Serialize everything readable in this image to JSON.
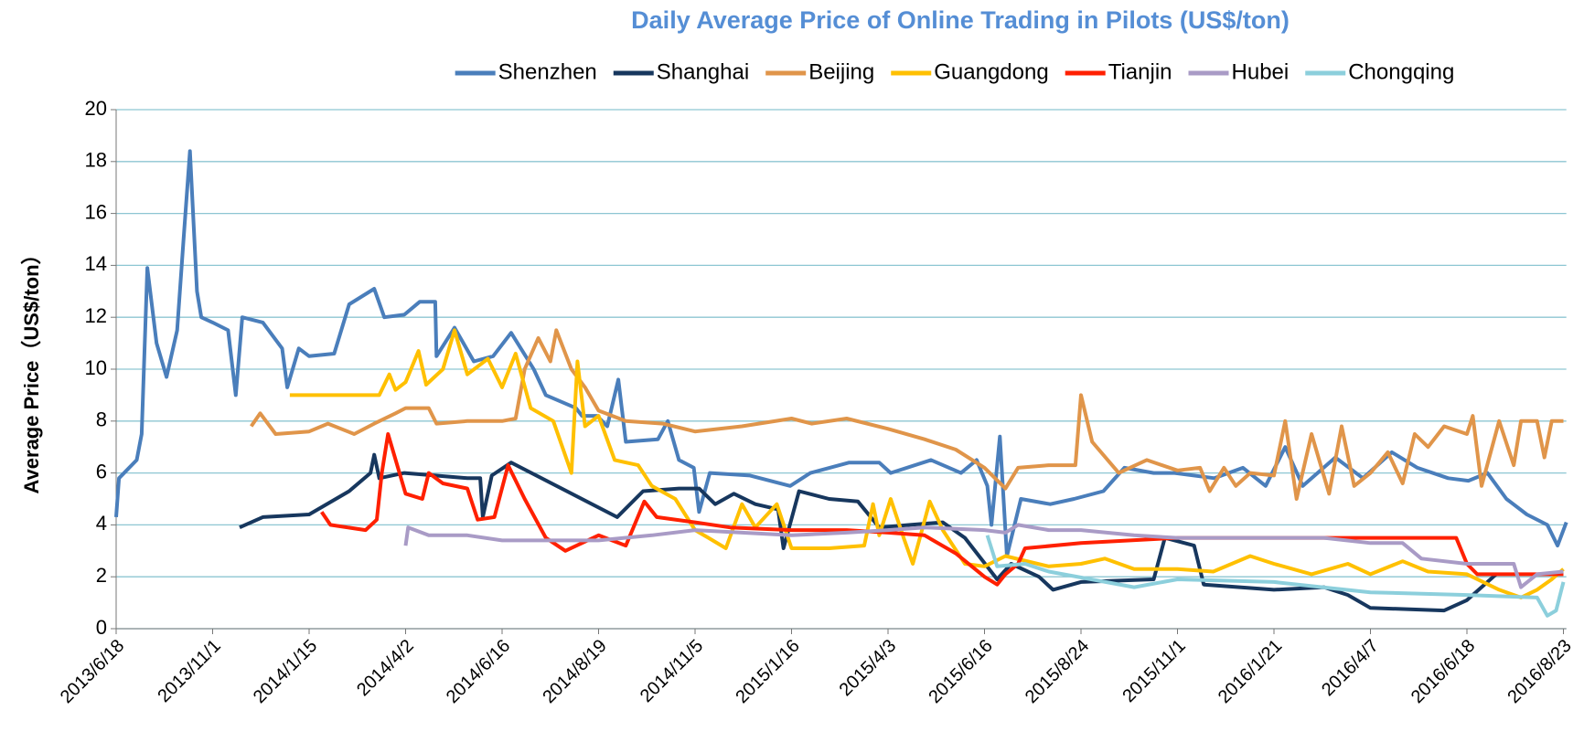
{
  "chart_data": {
    "type": "line",
    "title": "Daily Average Price of Online Trading in Pilots (US$/ton)",
    "y_label": "Average Price（US$/ton）",
    "xlim": [
      "2013/6/18",
      "2016/8/25"
    ],
    "xticks": [
      "2013/6/18",
      "2013/11/1",
      "2014/1/15",
      "2014/4/2",
      "2014/6/16",
      "2014/8/19",
      "2014/11/5",
      "2015/1/16",
      "2015/4/3",
      "2015/6/16",
      "2015/8/24",
      "2015/11/1",
      "2016/1/21",
      "2016/4/7",
      "2016/6/18",
      "2016/8/23"
    ],
    "ylim": [
      0,
      20
    ],
    "yticks": [
      0,
      2,
      4,
      6,
      8,
      10,
      12,
      14,
      16,
      18,
      20
    ],
    "grid": true,
    "legend": "top",
    "series": [
      {
        "name": "Shenzhen",
        "color": "#4a7ebb",
        "x": [
          "2013/6/18",
          "2013/6/22",
          "2013/7/17",
          "2013/7/24",
          "2013/8/1",
          "2013/8/14",
          "2013/8/28",
          "2013/9/12",
          "2013/9/21",
          "2013/9/30",
          "2013/10/10",
          "2013/10/16",
          "2013/11/1",
          "2013/11/13",
          "2013/11/19",
          "2013/11/24",
          "2013/12/10",
          "2013/12/25",
          "2013/12/29",
          "2014/1/7",
          "2014/1/15",
          "2014/2/4",
          "2014/2/16",
          "2014/3/8",
          "2014/3/16",
          "2014/4/1",
          "2014/4/13",
          "2014/4/25",
          "2014/4/26",
          "2014/5/10",
          "2014/5/25",
          "2014/6/9",
          "2014/6/22",
          "2014/7/7",
          "2014/7/15",
          "2014/8/4",
          "2014/8/8",
          "2014/8/18",
          "2014/8/26",
          "2014/9/4",
          "2014/9/10",
          "2014/10/6",
          "2014/10/14",
          "2014/10/23",
          "2014/11/4",
          "2014/11/8",
          "2014/11/16",
          "2014/12/16",
          "2015/1/15",
          "2015/1/31",
          "2015/3/3",
          "2015/3/27",
          "2015/4/5",
          "2015/5/6",
          "2015/5/29",
          "2015/6/10",
          "2015/6/18",
          "2015/6/21",
          "2015/6/27",
          "2015/7/2",
          "2015/7/12",
          "2015/8/2",
          "2015/8/19",
          "2015/9/9",
          "2015/9/24",
          "2015/10/15",
          "2015/10/30",
          "2015/12/2",
          "2015/12/26",
          "2016/1/14",
          "2016/1/30",
          "2016/2/13",
          "2016/3/10",
          "2016/4/1",
          "2016/4/23",
          "2016/5/12",
          "2016/6/4",
          "2016/6/19",
          "2016/7/2",
          "2016/7/15",
          "2016/7/29",
          "2016/8/12",
          "2016/8/19",
          "2016/8/25"
        ],
        "values": [
          4.3,
          5.8,
          6.5,
          7.5,
          13.9,
          11,
          9.7,
          11.5,
          15,
          18.4,
          13,
          12,
          11.8,
          11.5,
          9,
          12,
          11.8,
          10.8,
          9.3,
          10.8,
          10.5,
          10.6,
          12.5,
          13.1,
          12,
          12.1,
          12.6,
          12.6,
          10.5,
          11.6,
          10.3,
          10.5,
          11.4,
          10,
          9,
          8.5,
          8.2,
          8.2,
          7.8,
          9.6,
          7.2,
          7.3,
          8,
          6.5,
          6.2,
          4.5,
          6,
          5.9,
          5.5,
          6,
          6.4,
          6.4,
          6,
          6.5,
          6,
          6.5,
          5.5,
          4,
          7.4,
          2.8,
          5,
          4.8,
          5,
          5.3,
          6.2,
          6,
          6,
          5.8,
          6.2,
          5.5,
          7,
          5.5,
          6.6,
          5.8,
          6.8,
          6.2,
          5.8,
          5.7,
          6,
          5,
          4.4,
          4,
          3.2,
          4.1
        ]
      },
      {
        "name": "Shanghai",
        "color": "#17375e",
        "x": [
          "2013/11/22",
          "2013/12/10",
          "2014/1/15",
          "2014/2/16",
          "2014/3/5",
          "2014/3/8",
          "2014/3/12",
          "2014/4/1",
          "2014/4/25",
          "2014/5/20",
          "2014/5/30",
          "2014/6/1",
          "2014/6/8",
          "2014/6/22",
          "2014/9/3",
          "2014/9/24",
          "2014/10/23",
          "2014/11/8",
          "2014/11/20",
          "2014/12/4",
          "2014/12/20",
          "2015/1/6",
          "2015/1/10",
          "2015/1/22",
          "2015/2/15",
          "2015/3/10",
          "2015/3/27",
          "2015/4/20",
          "2015/5/15",
          "2015/6/1",
          "2015/6/25",
          "2015/7/5",
          "2015/7/25",
          "2015/8/4",
          "2015/8/24",
          "2015/10/15",
          "2015/10/23",
          "2015/11/15",
          "2015/11/23",
          "2016/1/21",
          "2016/3/1",
          "2016/3/20",
          "2016/4/7",
          "2016/6/1",
          "2016/6/18",
          "2016/7/8"
        ],
        "values": [
          3.9,
          4.3,
          4.4,
          5.3,
          6,
          6.7,
          5.8,
          6,
          5.9,
          5.8,
          5.8,
          4.3,
          5.9,
          6.4,
          4.3,
          5.3,
          5.4,
          5.4,
          4.8,
          5.2,
          4.8,
          4.6,
          3.1,
          5.3,
          5,
          4.9,
          3.9,
          4,
          4.1,
          3.5,
          1.9,
          2.5,
          2,
          1.5,
          1.8,
          1.9,
          3.5,
          3.2,
          1.7,
          1.5,
          1.6,
          1.3,
          0.8,
          0.7,
          1.1,
          2.1
        ]
      },
      {
        "name": "Beijing",
        "color": "#e0954a",
        "x": [
          "2013/12/1",
          "2013/12/8",
          "2013/12/20",
          "2014/1/15",
          "2014/1/30",
          "2014/2/20",
          "2014/3/8",
          "2014/3/25",
          "2014/4/2",
          "2014/4/20",
          "2014/4/26",
          "2014/5/20",
          "2014/6/16",
          "2014/6/25",
          "2014/7/1",
          "2014/7/10",
          "2014/7/18",
          "2014/7/22",
          "2014/8/1",
          "2014/8/10",
          "2014/8/19",
          "2014/9/10",
          "2014/10/10",
          "2014/11/5",
          "2014/12/10",
          "2015/1/16",
          "2015/2/1",
          "2015/3/1",
          "2015/4/3",
          "2015/5/1",
          "2015/5/25",
          "2015/6/16",
          "2015/7/1",
          "2015/7/10",
          "2015/8/1",
          "2015/8/20",
          "2015/8/24",
          "2015/9/1",
          "2015/9/20",
          "2015/10/10",
          "2015/11/1",
          "2015/11/20",
          "2015/11/28",
          "2015/12/10",
          "2015/12/20",
          "2016/1/1",
          "2016/1/21",
          "2016/1/30",
          "2016/2/8",
          "2016/2/20",
          "2016/3/5",
          "2016/3/15",
          "2016/3/25",
          "2016/4/7",
          "2016/4/20",
          "2016/5/1",
          "2016/5/10",
          "2016/5/20",
          "2016/6/1",
          "2016/6/18",
          "2016/6/22",
          "2016/6/28",
          "2016/7/10",
          "2016/7/20",
          "2016/7/25",
          "2016/8/5",
          "2016/8/10",
          "2016/8/15",
          "2016/8/23"
        ],
        "values": [
          7.8,
          8.3,
          7.5,
          7.6,
          7.9,
          7.5,
          7.9,
          8.3,
          8.5,
          8.5,
          7.9,
          8,
          8,
          8.1,
          10,
          11.2,
          10.3,
          11.5,
          10,
          9.3,
          8.4,
          8,
          7.9,
          7.6,
          7.8,
          8.1,
          7.9,
          8.1,
          7.7,
          7.3,
          6.9,
          6.2,
          5.4,
          6.2,
          6.3,
          6.3,
          9,
          7.2,
          6,
          6.5,
          6.1,
          6.2,
          5.3,
          6.2,
          5.5,
          6,
          5.9,
          8,
          5,
          7.5,
          5.2,
          7.8,
          5.5,
          6,
          6.8,
          5.6,
          7.5,
          7,
          7.8,
          7.5,
          8.2,
          5.5,
          8,
          6.3,
          8,
          8,
          6.6,
          8,
          8
        ]
      },
      {
        "name": "Guangdong",
        "color": "#ffc000",
        "x": [
          "2013/12/31",
          "2014/3/12",
          "2014/3/20",
          "2014/3/25",
          "2014/4/2",
          "2014/4/12",
          "2014/4/18",
          "2014/5/1",
          "2014/5/10",
          "2014/5/20",
          "2014/6/5",
          "2014/6/16",
          "2014/6/25",
          "2014/7/5",
          "2014/7/20",
          "2014/8/1",
          "2014/8/5",
          "2014/8/10",
          "2014/8/19",
          "2014/9/1",
          "2014/9/20",
          "2014/10/1",
          "2014/10/20",
          "2014/11/5",
          "2014/11/15",
          "2014/11/28",
          "2014/12/10",
          "2014/12/20",
          "2015/1/5",
          "2015/1/16",
          "2015/2/15",
          "2015/3/15",
          "2015/3/22",
          "2015/3/27",
          "2015/4/5",
          "2015/4/15",
          "2015/4/22",
          "2015/5/5",
          "2015/5/15",
          "2015/6/1",
          "2015/6/16",
          "2015/7/1",
          "2015/8/1",
          "2015/8/24",
          "2015/9/10",
          "2015/10/1",
          "2015/11/1",
          "2015/12/1",
          "2016/1/1",
          "2016/1/21",
          "2016/2/20",
          "2016/3/20",
          "2016/4/7",
          "2016/5/1",
          "2016/5/20",
          "2016/6/18",
          "2016/7/10",
          "2016/7/25",
          "2016/8/5",
          "2016/8/15",
          "2016/8/23"
        ],
        "values": [
          9,
          9,
          9.8,
          9.2,
          9.5,
          10.7,
          9.4,
          10,
          11.5,
          9.8,
          10.4,
          9.3,
          10.6,
          8.5,
          8,
          6,
          10.3,
          7.8,
          8.2,
          6.5,
          6.3,
          5.5,
          5,
          3.8,
          3.5,
          3.1,
          4.8,
          3.9,
          4.8,
          3.1,
          3.1,
          3.2,
          4.8,
          3.6,
          5,
          3.5,
          2.5,
          4.9,
          3.8,
          2.5,
          2.4,
          2.8,
          2.4,
          2.5,
          2.7,
          2.3,
          2.3,
          2.2,
          2.8,
          2.5,
          2.1,
          2.5,
          2.1,
          2.6,
          2.2,
          2.1,
          1.5,
          1.2,
          1.5,
          1.9,
          2.3
        ]
      },
      {
        "name": "Tianjin",
        "color": "#ff2000",
        "x": [
          "2014/1/25",
          "2014/2/1",
          "2014/3/1",
          "2014/3/10",
          "2014/3/14",
          "2014/3/19",
          "2014/4/2",
          "2014/4/15",
          "2014/4/20",
          "2014/5/1",
          "2014/5/20",
          "2014/5/28",
          "2014/6/10",
          "2014/6/20",
          "2014/7/1",
          "2014/7/15",
          "2014/7/28",
          "2014/8/19",
          "2014/9/10",
          "2014/9/25",
          "2014/10/5",
          "2014/11/5",
          "2014/12/1",
          "2015/1/16",
          "2015/3/1",
          "2015/4/3",
          "2015/5/1",
          "2015/5/25",
          "2015/6/16",
          "2015/6/25",
          "2015/7/1",
          "2015/7/10",
          "2015/7/15",
          "2015/8/24",
          "2015/11/1",
          "2016/1/21",
          "2016/4/7",
          "2016/6/10",
          "2016/6/18",
          "2016/6/25",
          "2016/8/23"
        ],
        "values": [
          4.5,
          4,
          3.8,
          4.2,
          6,
          7.5,
          5.2,
          5,
          6,
          5.6,
          5.4,
          4.2,
          4.3,
          6.3,
          5,
          3.5,
          3,
          3.6,
          3.2,
          4.9,
          4.3,
          4.1,
          3.9,
          3.8,
          3.8,
          3.7,
          3.6,
          2.9,
          2,
          1.7,
          2.1,
          2.5,
          3.1,
          3.3,
          3.5,
          3.5,
          3.5,
          3.5,
          2.5,
          2.1,
          2.1
        ]
      },
      {
        "name": "Hubei",
        "color": "#a99bc6",
        "x": [
          "2014/4/2",
          "2014/4/4",
          "2014/4/20",
          "2014/5/20",
          "2014/6/16",
          "2014/8/19",
          "2014/10/1",
          "2014/11/5",
          "2015/1/16",
          "2015/3/1",
          "2015/4/3",
          "2015/5/1",
          "2015/6/16",
          "2015/7/1",
          "2015/7/10",
          "2015/8/1",
          "2015/8/24",
          "2015/10/1",
          "2015/11/1",
          "2016/1/21",
          "2016/3/1",
          "2016/4/7",
          "2016/5/1",
          "2016/5/15",
          "2016/6/18",
          "2016/7/20",
          "2016/7/25",
          "2016/8/5",
          "2016/8/23"
        ],
        "values": [
          3.2,
          3.9,
          3.6,
          3.6,
          3.4,
          3.4,
          3.6,
          3.8,
          3.6,
          3.7,
          3.8,
          3.9,
          3.8,
          3.7,
          4,
          3.8,
          3.8,
          3.6,
          3.5,
          3.5,
          3.5,
          3.3,
          3.3,
          2.7,
          2.5,
          2.5,
          1.6,
          2.1,
          2.2
        ]
      },
      {
        "name": "Chongqing",
        "color": "#8ccfdc",
        "x": [
          "2015/6/18",
          "2015/6/25",
          "2015/7/15",
          "2015/8/1",
          "2015/10/1",
          "2015/11/1",
          "2016/1/21",
          "2016/4/7",
          "2016/6/18",
          "2016/8/5",
          "2016/8/12",
          "2016/8/18",
          "2016/8/23"
        ],
        "values": [
          3.6,
          2.4,
          2.5,
          2.2,
          1.6,
          1.9,
          1.8,
          1.4,
          1.3,
          1.2,
          0.5,
          0.7,
          1.8
        ]
      }
    ]
  }
}
